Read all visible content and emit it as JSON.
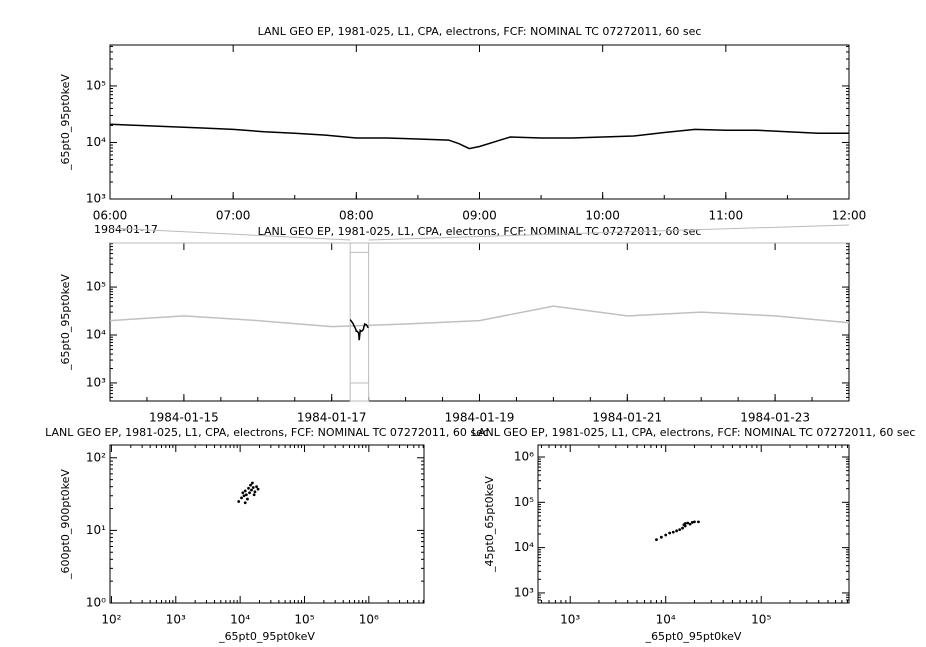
{
  "chart_data": [
    {
      "type": "line",
      "title": "LANL GEO EP, 1981-025, L1, CPA, electrons, FCF: NOMINAL TC 07272011, 60 sec",
      "y_label": "_65pt0_95pt0keV",
      "x_date": "1984-01-17",
      "log_y": true,
      "color": "#000000",
      "x": [
        "06:00",
        "06:15",
        "06:30",
        "06:45",
        "07:00",
        "07:15",
        "07:30",
        "07:45",
        "08:00",
        "08:15",
        "08:30",
        "08:45",
        "08:50",
        "08:55",
        "09:00",
        "09:15",
        "09:30",
        "09:45",
        "10:00",
        "10:15",
        "10:30",
        "10:45",
        "11:00",
        "11:15",
        "11:30",
        "11:45",
        "12:00"
      ],
      "values": [
        21000,
        20000,
        19000,
        18000,
        17000,
        15500,
        14500,
        13500,
        12000,
        12000,
        11500,
        11000,
        9500,
        7800,
        8500,
        12500,
        12000,
        12000,
        12500,
        13000,
        15000,
        17000,
        16500,
        16500,
        15500,
        14500,
        14500
      ],
      "xlim": [
        "06:00",
        "12:00"
      ],
      "xticks": [
        "06:00",
        "07:00",
        "08:00",
        "09:00",
        "10:00",
        "11:00",
        "12:00"
      ],
      "ylim": [
        1000,
        530000
      ],
      "yticks": [
        {
          "value": 1000,
          "label": "10³"
        },
        {
          "value": 10000,
          "label": "10⁴"
        },
        {
          "value": 100000,
          "label": "10⁵"
        }
      ]
    },
    {
      "type": "line",
      "title": "LANL GEO EP, 1981-025, L1, CPA, electrons, FCF: NOMINAL TC 07272011, 60 sec",
      "y_label": "_65pt0_95pt0keV",
      "log_y": true,
      "color": "#c0c0c0",
      "x": [
        "1984-01-14",
        "1984-01-15",
        "1984-01-16",
        "1984-01-17",
        "1984-01-18",
        "1984-01-19",
        "1984-01-20",
        "1984-01-21",
        "1984-01-22",
        "1984-01-23",
        "1984-01-24"
      ],
      "values": [
        20000,
        25000,
        20000,
        15000,
        17000,
        20000,
        40000,
        25000,
        30000,
        25000,
        18000
      ],
      "xlim": [
        "1984-01-14",
        "1984-01-24"
      ],
      "xticks": [
        "1984-01-15",
        "1984-01-17",
        "1984-01-19",
        "1984-01-21",
        "1984-01-23"
      ],
      "ylim": [
        420,
        830000
      ],
      "yticks": [
        {
          "value": 1000,
          "label": "10³"
        },
        {
          "value": 10000,
          "label": "10⁴"
        },
        {
          "value": 100000,
          "label": "10⁵"
        }
      ]
    },
    {
      "type": "scatter",
      "title": "LANL GEO EP, 1981-025, L1, CPA, electrons, FCF: NOMINAL TC 07272011, 60 sec",
      "x_label": "_65pt0_95pt0keV",
      "y_label": "_600pt0_900pt0keV",
      "log_x": true,
      "log_y": true,
      "color": "#000000",
      "x": [
        10500,
        11000,
        11500,
        12000,
        12500,
        13000,
        13500,
        14000,
        14500,
        15000,
        15500,
        16000,
        17000,
        18000,
        9500,
        12000,
        16500,
        19000
      ],
      "values": [
        28,
        33,
        30,
        35,
        31,
        27,
        38,
        33,
        42,
        36,
        45,
        39,
        34,
        40,
        25,
        24,
        31,
        37
      ],
      "xlim": [
        95,
        7200000
      ],
      "xticks": [
        {
          "value": 100,
          "label": "10²"
        },
        {
          "value": 1000,
          "label": "10³"
        },
        {
          "value": 10000,
          "label": "10⁴"
        },
        {
          "value": 100000,
          "label": "10⁵"
        },
        {
          "value": 1000000,
          "label": "10⁶"
        }
      ],
      "ylim": [
        1,
        150
      ],
      "yticks": [
        {
          "value": 1,
          "label": "10⁰"
        },
        {
          "value": 10,
          "label": "10¹"
        },
        {
          "value": 100,
          "label": "10²"
        }
      ]
    },
    {
      "type": "scatter",
      "title": "LANL GEO EP, 1981-025, L1, CPA, electrons, FCF: NOMINAL TC 07272011, 60 sec",
      "x_label": "_65pt0_95pt0keV",
      "y_label": "_45pt0_65pt0keV",
      "log_x": true,
      "log_y": true,
      "color": "#000000",
      "x": [
        8000,
        9000,
        10000,
        11000,
        12000,
        13000,
        14000,
        15000,
        16000,
        17000,
        18000,
        19000,
        20000,
        22000,
        16000,
        15500
      ],
      "values": [
        15000,
        17000,
        19000,
        21000,
        22000,
        23500,
        25000,
        27000,
        30000,
        35000,
        33000,
        36000,
        37000,
        37000,
        34000,
        32000
      ],
      "xlim": [
        460,
        830000
      ],
      "xticks": [
        {
          "value": 1000,
          "label": "10³"
        },
        {
          "value": 10000,
          "label": "10⁴"
        },
        {
          "value": 100000,
          "label": "10⁵"
        }
      ],
      "ylim": [
        600,
        1840000
      ],
      "yticks": [
        {
          "value": 1000,
          "label": "10³"
        },
        {
          "value": 10000,
          "label": "10⁴"
        },
        {
          "value": 100000,
          "label": "10⁵"
        },
        {
          "value": 1000000,
          "label": "10⁶"
        }
      ]
    }
  ]
}
